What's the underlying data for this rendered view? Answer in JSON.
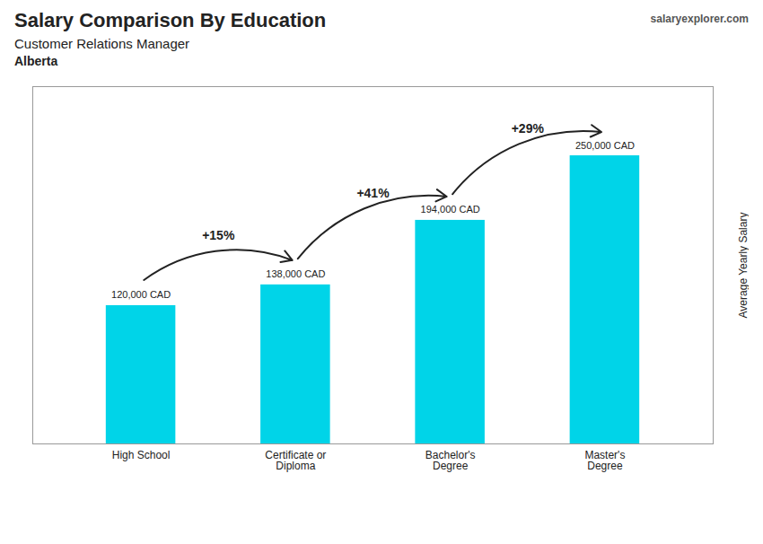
{
  "chart_data": {
    "type": "bar",
    "title": "Salary Comparison By Education",
    "subtitle": "Customer Relations Manager",
    "location": "Alberta",
    "watermark": "salaryexplorer.com",
    "ylabel": "Average Yearly Salary",
    "categories": [
      "High School",
      "Certificate or\nDiploma",
      "Bachelor's\nDegree",
      "Master's\nDegree"
    ],
    "values": [
      120000,
      138000,
      194000,
      250000
    ],
    "value_labels": [
      "120,000 CAD",
      "138,000 CAD",
      "194,000 CAD",
      "250,000 CAD"
    ],
    "data_labels": true,
    "color": "#00d4e8",
    "ylim": [
      0,
      310000
    ],
    "tick_labels": "x",
    "grid": false,
    "annotations": [
      {
        "text": "+15%",
        "from": "High School",
        "to": "Certificate or\nDiploma"
      },
      {
        "text": "+41%",
        "from": "Certificate or\nDiploma",
        "to": "Bachelor's\nDegree"
      },
      {
        "text": "+29%",
        "from": "Bachelor's\nDegree",
        "to": "Master's\nDegree"
      }
    ]
  }
}
